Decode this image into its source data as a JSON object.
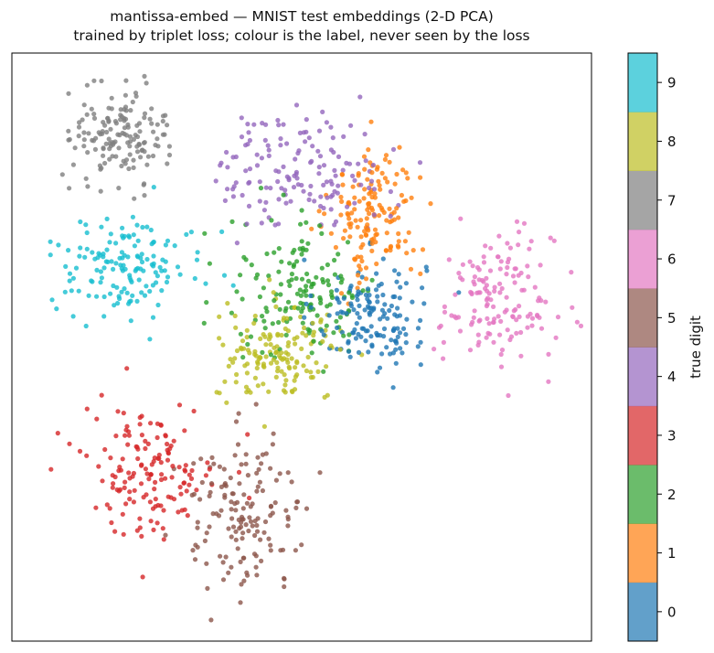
{
  "chart_data": {
    "type": "scatter",
    "title": "mantissa-embed — MNIST test embeddings (2-D PCA)",
    "subtitle": "trained by triplet loss; colour is the label, never seen by the loss",
    "xlabel": "",
    "ylabel": "",
    "ticks_visible": false,
    "xlim": [
      -8,
      8
    ],
    "ylim": [
      -8,
      8
    ],
    "colorbar": {
      "label": "true digit",
      "ticks": [
        "0",
        "1",
        "2",
        "3",
        "4",
        "5",
        "6",
        "7",
        "8",
        "9"
      ],
      "colors": [
        "#1f77b4",
        "#ff7f0e",
        "#2ca02c",
        "#d62728",
        "#9467bd",
        "#8c564b",
        "#e377c2",
        "#7f7f7f",
        "#bcbd22",
        "#17becf"
      ]
    },
    "clusters": [
      {
        "label": "0",
        "center": [
          1.9,
          0.9
        ],
        "spread": [
          1.05,
          1.05
        ],
        "count": 150
      },
      {
        "label": "1",
        "center": [
          2.0,
          3.6
        ],
        "spread": [
          0.85,
          1.3
        ],
        "count": 150
      },
      {
        "label": "2",
        "center": [
          0.0,
          1.5
        ],
        "spread": [
          1.45,
          1.4
        ],
        "count": 150
      },
      {
        "label": "3",
        "center": [
          -4.2,
          -3.3
        ],
        "spread": [
          1.3,
          1.25
        ],
        "count": 150
      },
      {
        "label": "4",
        "center": [
          0.0,
          4.8
        ],
        "spread": [
          1.6,
          1.1
        ],
        "count": 150
      },
      {
        "label": "5",
        "center": [
          -1.6,
          -4.5
        ],
        "spread": [
          1.3,
          1.45
        ],
        "count": 150
      },
      {
        "label": "6",
        "center": [
          5.4,
          1.2
        ],
        "spread": [
          1.1,
          1.3
        ],
        "count": 150
      },
      {
        "label": "7",
        "center": [
          -5.0,
          5.8
        ],
        "spread": [
          0.9,
          0.9
        ],
        "count": 150
      },
      {
        "label": "8",
        "center": [
          -0.6,
          -0.2
        ],
        "spread": [
          1.2,
          0.9
        ],
        "count": 150
      },
      {
        "label": "9",
        "center": [
          -4.8,
          2.2
        ],
        "spread": [
          1.5,
          0.9
        ],
        "count": 150
      }
    ]
  }
}
